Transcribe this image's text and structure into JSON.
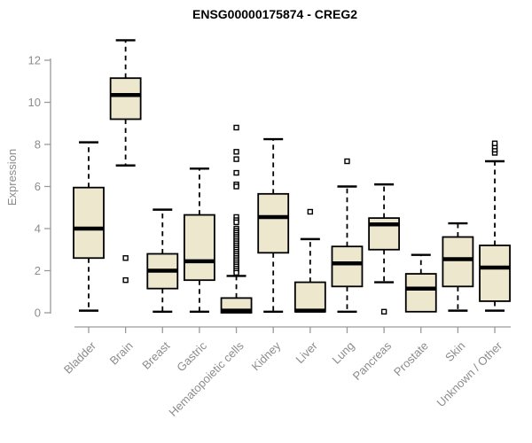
{
  "chart_data": {
    "type": "boxplot",
    "title": "ENSG00000175874 - CREG2",
    "ylabel": "Expression",
    "xlabel": "",
    "y_ticks": [
      0,
      2,
      4,
      6,
      8,
      10,
      12
    ],
    "ylim": [
      0,
      13.2
    ],
    "grid": false,
    "legend": "none",
    "categories": [
      "Bladder",
      "Brain",
      "Breast",
      "Gastric",
      "Hematopoietic cells",
      "Kidney",
      "Liver",
      "Lung",
      "Pancreas",
      "Prostate",
      "Skin",
      "Unknown / Other"
    ],
    "series": [
      {
        "name": "Bladder",
        "min": 0.1,
        "q1": 2.6,
        "median": 4.0,
        "q3": 5.95,
        "max": 8.1,
        "outliers": []
      },
      {
        "name": "Brain",
        "min": 7.0,
        "q1": 9.2,
        "median": 10.35,
        "q3": 11.15,
        "max": 12.95,
        "outliers": [
          2.6,
          1.55
        ]
      },
      {
        "name": "Breast",
        "min": 0.05,
        "q1": 1.15,
        "median": 2.0,
        "q3": 2.8,
        "max": 4.9,
        "outliers": []
      },
      {
        "name": "Gastric",
        "min": 0.05,
        "q1": 1.55,
        "median": 2.45,
        "q3": 4.65,
        "max": 6.85,
        "outliers": []
      },
      {
        "name": "Hematopoietic cells",
        "min": 0.0,
        "q1": 0.0,
        "median": 0.1,
        "q3": 0.7,
        "max": 1.75,
        "outliers": [
          8.8,
          7.65,
          7.3,
          6.65,
          6.1,
          6.0,
          4.55,
          4.4,
          4.3,
          4.0,
          3.9,
          3.8,
          3.7,
          3.6,
          3.5,
          3.4,
          3.3,
          3.2,
          3.1,
          3.0,
          2.9,
          2.8,
          2.7,
          2.6,
          2.5,
          2.4,
          2.3,
          2.2,
          2.1,
          2.0,
          1.9
        ]
      },
      {
        "name": "Kidney",
        "min": 0.05,
        "q1": 2.85,
        "median": 4.55,
        "q3": 5.65,
        "max": 8.25,
        "outliers": []
      },
      {
        "name": "Liver",
        "min": 0.05,
        "q1": 0.05,
        "median": 0.1,
        "q3": 1.45,
        "max": 3.5,
        "outliers": [
          4.8
        ]
      },
      {
        "name": "Lung",
        "min": 0.05,
        "q1": 1.25,
        "median": 2.35,
        "q3": 3.15,
        "max": 6.0,
        "outliers": [
          7.2
        ]
      },
      {
        "name": "Pancreas",
        "min": 1.45,
        "q1": 3.0,
        "median": 4.2,
        "q3": 4.5,
        "max": 6.1,
        "outliers": [
          0.05
        ]
      },
      {
        "name": "Prostate",
        "min": 0.05,
        "q1": 0.05,
        "median": 1.15,
        "q3": 1.85,
        "max": 2.75,
        "outliers": []
      },
      {
        "name": "Skin",
        "min": 0.1,
        "q1": 1.25,
        "median": 2.55,
        "q3": 3.6,
        "max": 4.25,
        "outliers": []
      },
      {
        "name": "Unknown / Other",
        "min": 0.1,
        "q1": 0.55,
        "median": 2.15,
        "q3": 3.2,
        "max": 7.2,
        "outliers": [
          7.6,
          7.75,
          7.9,
          8.05
        ]
      }
    ],
    "colors": {
      "box_fill": "#EDE7CE",
      "box_border": "#000000",
      "median": "#000000",
      "whisker": "#000000",
      "outlier_fill": "#FFFFFF",
      "axis_line": "#9A9A9A",
      "axis_text": "#8C8C8C",
      "title": "#000000",
      "background": "#FFFFFF"
    }
  }
}
